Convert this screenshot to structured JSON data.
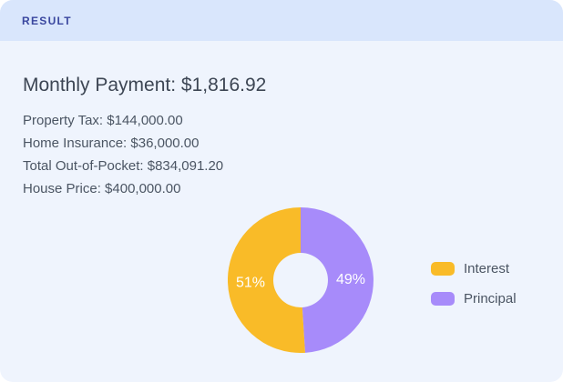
{
  "header": {
    "title": "RESULT"
  },
  "summary": {
    "monthly_payment": {
      "label": "Monthly Payment:",
      "value": "$1,816.92"
    },
    "details": [
      {
        "label": "Property Tax:",
        "value": "$144,000.00"
      },
      {
        "label": "Home Insurance:",
        "value": "$36,000.00"
      },
      {
        "label": "Total Out-of-Pocket:",
        "value": "$834,091.20"
      },
      {
        "label": "House Price:",
        "value": "$400,000.00"
      }
    ]
  },
  "chart_data": {
    "type": "pie",
    "variant": "donut",
    "labels": [
      "Interest",
      "Principal"
    ],
    "values": [
      51,
      49
    ],
    "value_labels": [
      "51%",
      "49%"
    ],
    "colors": [
      "#F9BB28",
      "#A78BFA"
    ],
    "slice_label_color": "#FFFFFF",
    "start_angle": "top",
    "direction": "counterclockwise",
    "inner_radius_ratio": 0.375,
    "legend_position": "right"
  },
  "colors": {
    "card_background": "#EFF4FD",
    "header_background": "#D9E6FC",
    "header_text": "#3A479F",
    "heading_text": "#3D4654",
    "body_text": "#4B5563"
  }
}
